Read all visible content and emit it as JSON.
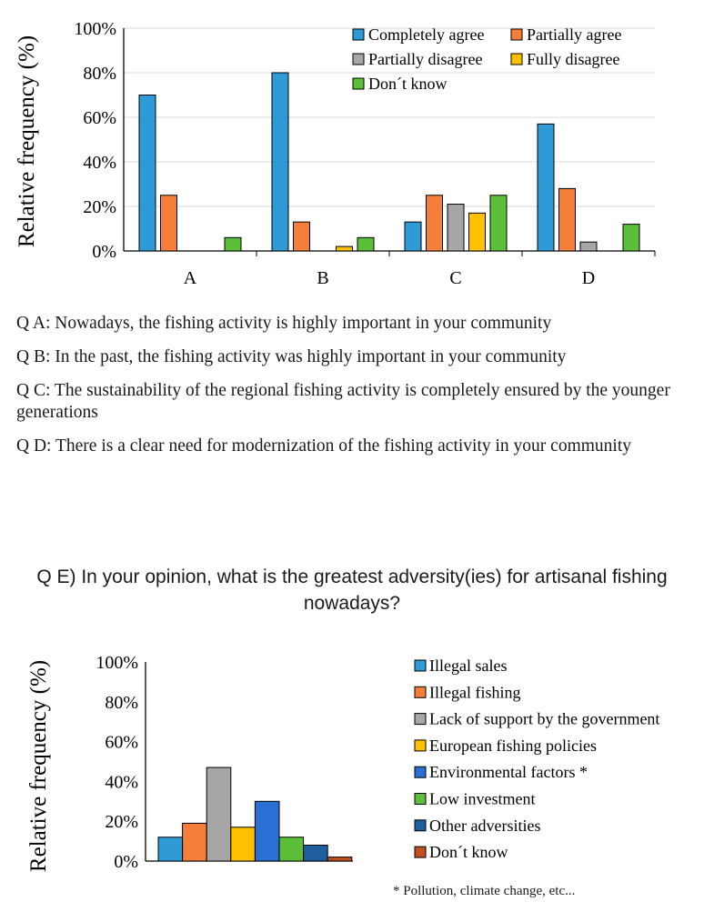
{
  "chart_data": [
    {
      "type": "bar",
      "categories": [
        "A",
        "B",
        "C",
        "D"
      ],
      "ylabel": "Relative frequency (%)",
      "ylim": [
        0,
        100
      ],
      "yticks": [
        "0%",
        "20%",
        "40%",
        "60%",
        "80%",
        "100%"
      ],
      "grid": true,
      "legend_position": "top-right",
      "series": [
        {
          "name": "Completely agree",
          "color": "#2E9BD6",
          "values": [
            70,
            80,
            13,
            57
          ]
        },
        {
          "name": "Partially agree",
          "color": "#F57F3A",
          "values": [
            25,
            13,
            25,
            28
          ]
        },
        {
          "name": "Partially disagree",
          "color": "#A6A6A6",
          "values": [
            0,
            0,
            21,
            4
          ]
        },
        {
          "name": "Fully disagree",
          "color": "#FFC000",
          "values": [
            0,
            2,
            17,
            0
          ]
        },
        {
          "name": "Don´t know",
          "color": "#5BBF3A",
          "values": [
            6,
            6,
            25,
            12
          ]
        }
      ]
    },
    {
      "type": "bar",
      "title": "Q E) In your opinion, what is the greatest adversity(ies) for artisanal fishing nowadays?",
      "ylabel": "Relative frequency (%)",
      "ylim": [
        0,
        100
      ],
      "yticks": [
        "0%",
        "20%",
        "40%",
        "60%",
        "80%",
        "100%"
      ],
      "grid": false,
      "legend_position": "right",
      "series": [
        {
          "name": "Illegal sales",
          "color": "#2E9BD6",
          "value": 12
        },
        {
          "name": "Illegal fishing",
          "color": "#F57F3A",
          "value": 19
        },
        {
          "name": "Lack of support by the government",
          "color": "#A6A6A6",
          "value": 47
        },
        {
          "name": "European fishing policies",
          "color": "#FFC000",
          "value": 17
        },
        {
          "name": "Environmental factors *",
          "color": "#2A6FD4",
          "value": 30
        },
        {
          "name": "Low investment",
          "color": "#5BBF3A",
          "value": 12
        },
        {
          "name": "Other adversities",
          "color": "#1F5F9E",
          "value": 8
        },
        {
          "name": "Don´t know",
          "color": "#C0501E",
          "value": 2
        }
      ]
    }
  ],
  "questions": {
    "a": "Q A: Nowadays, the fishing activity is highly important in your community",
    "b": "Q B: In the past, the fishing activity was highly important in your community",
    "c": "Q C: The sustainability of the regional fishing activity is completely ensured by the younger generations",
    "d": "Q D: There is a clear need for modernization of the fishing activity in your community"
  },
  "footnote": "* Pollution, climate change, etc..."
}
